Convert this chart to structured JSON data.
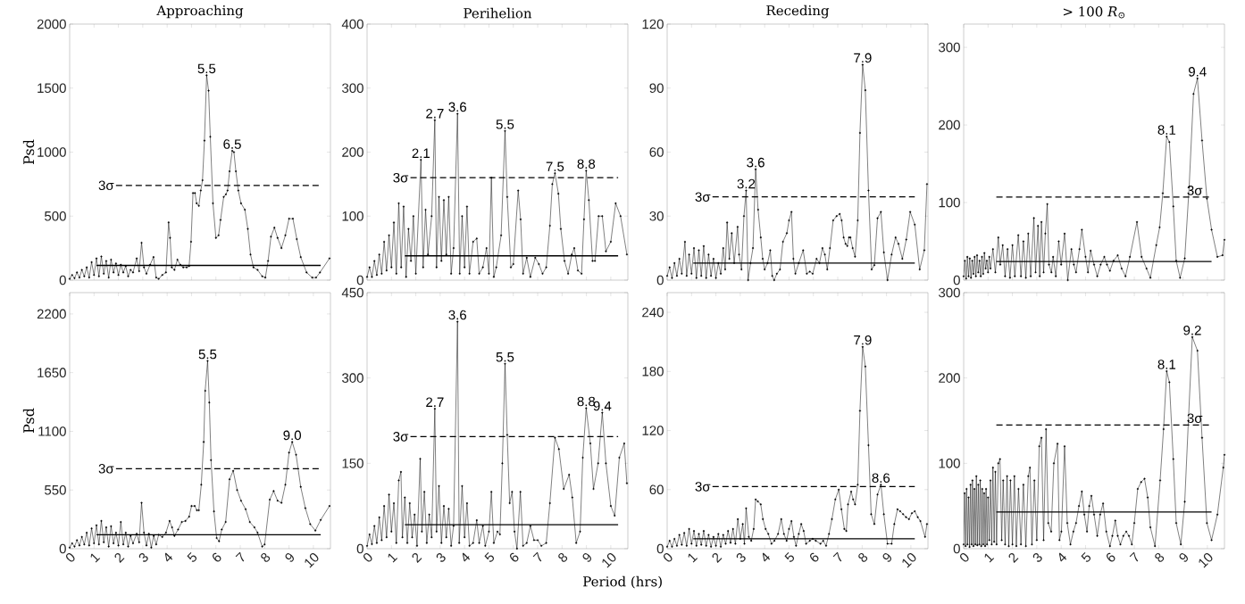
{
  "chart_data": [
    {
      "type": "line",
      "title": "Approaching",
      "ylabel": "Psd",
      "xlim": [
        0,
        10.7
      ],
      "xticks": [
        0,
        1,
        2,
        3,
        4,
        5,
        6,
        7,
        8,
        9,
        10
      ],
      "ylim": [
        0,
        2000
      ],
      "yticks": [
        0,
        500,
        1000,
        1500,
        2000
      ],
      "tick_labels": "y",
      "annotations": [
        {
          "text": "5.5",
          "x": 5.62,
          "y": 1600
        },
        {
          "text": "6.5",
          "x": 6.67,
          "y": 1010
        },
        {
          "text": "3σ",
          "x": 1.9,
          "y": 740
        }
      ],
      "series": [
        {
          "color": "#000000",
          "marker": "circle",
          "x": [
            0,
            0.1,
            0.2,
            0.3,
            0.4,
            0.5,
            0.6,
            0.7,
            0.8,
            0.9,
            1.0,
            1.1,
            1.2,
            1.3,
            1.4,
            1.5,
            1.6,
            1.7,
            1.8,
            1.9,
            2.0,
            2.1,
            2.2,
            2.3,
            2.4,
            2.5,
            2.6,
            2.75,
            2.85,
            2.95,
            3.05,
            3.15,
            3.3,
            3.44,
            3.55,
            3.65,
            3.8,
            3.95,
            4.06,
            4.12,
            4.19,
            4.3,
            4.42,
            4.54,
            4.66,
            4.8,
            4.9,
            4.98,
            5.06,
            5.14,
            5.21,
            5.3,
            5.38,
            5.45,
            5.53,
            5.62,
            5.7,
            5.77,
            5.88,
            6.0,
            6.11,
            6.19,
            6.32,
            6.41,
            6.48,
            6.56,
            6.67,
            6.74,
            6.82,
            6.92,
            7.03,
            7.19,
            7.31,
            7.42,
            7.54,
            7.71,
            7.9,
            8.03,
            8.14,
            8.26,
            8.4,
            8.53,
            8.69,
            8.85,
            9.0,
            9.16,
            9.32,
            9.48,
            9.72,
            9.95,
            10.11,
            10.27,
            10.66
          ],
          "values": [
            10,
            40,
            15,
            60,
            20,
            80,
            30,
            100,
            20,
            140,
            40,
            170,
            30,
            185,
            50,
            150,
            20,
            160,
            60,
            130,
            40,
            120,
            60,
            110,
            30,
            80,
            60,
            170,
            70,
            292,
            100,
            50,
            120,
            180,
            20,
            10,
            40,
            60,
            451,
            330,
            100,
            80,
            160,
            120,
            100,
            100,
            110,
            300,
            680,
            680,
            600,
            580,
            700,
            780,
            1090,
            1600,
            1480,
            1120,
            600,
            330,
            350,
            470,
            650,
            670,
            700,
            850,
            1010,
            1000,
            850,
            700,
            600,
            550,
            400,
            200,
            100,
            80,
            30,
            20,
            150,
            340,
            410,
            330,
            250,
            350,
            480,
            480,
            320,
            180,
            60,
            20,
            20,
            60,
            170
          ]
        },
        {
          "color": "#000000",
          "marker": "none",
          "line_style": "dashed",
          "x": [
            1.9,
            10.3
          ],
          "values": [
            740,
            740
          ]
        },
        {
          "color": "#000000",
          "marker": "none",
          "line_style": "solid",
          "x": [
            1.1,
            10.3
          ],
          "values": [
            115,
            115
          ]
        }
      ]
    },
    {
      "type": "line",
      "title": "Perihelion",
      "xlim": [
        0,
        10.7
      ],
      "xticks": [
        0,
        1,
        2,
        3,
        4,
        5,
        6,
        7,
        8,
        9,
        10
      ],
      "ylim": [
        0,
        400
      ],
      "yticks": [
        0,
        100,
        200,
        300,
        400
      ],
      "tick_labels": "y",
      "annotations": [
        {
          "text": "2.1",
          "x": 2.21,
          "y": 188
        },
        {
          "text": "2.7",
          "x": 2.78,
          "y": 250
        },
        {
          "text": "3.6",
          "x": 3.71,
          "y": 260
        },
        {
          "text": "5.5",
          "x": 5.66,
          "y": 233
        },
        {
          "text": "7.5",
          "x": 7.71,
          "y": 167
        },
        {
          "text": "8.8",
          "x": 8.99,
          "y": 171
        },
        {
          "text": "3σ",
          "x": 1.78,
          "y": 160
        }
      ],
      "series": [
        {
          "color": "#000000",
          "marker": "circle",
          "x": [
            0,
            0.1,
            0.2,
            0.3,
            0.4,
            0.5,
            0.6,
            0.7,
            0.8,
            0.9,
            1.0,
            1.1,
            1.2,
            1.3,
            1.4,
            1.5,
            1.6,
            1.7,
            1.8,
            1.9,
            2.0,
            2.21,
            2.3,
            2.4,
            2.5,
            2.65,
            2.78,
            2.85,
            2.95,
            3.05,
            3.15,
            3.25,
            3.35,
            3.45,
            3.55,
            3.71,
            3.8,
            3.9,
            4.0,
            4.1,
            4.2,
            4.35,
            4.5,
            4.6,
            4.75,
            4.9,
            5.0,
            5.1,
            5.2,
            5.3,
            5.5,
            5.66,
            5.75,
            5.9,
            6.0,
            6.2,
            6.3,
            6.4,
            6.55,
            6.7,
            6.9,
            7.05,
            7.2,
            7.35,
            7.5,
            7.6,
            7.71,
            7.85,
            7.95,
            8.1,
            8.25,
            8.4,
            8.5,
            8.65,
            8.8,
            8.9,
            8.99,
            9.1,
            9.25,
            9.35,
            9.5,
            9.65,
            9.8,
            10.0,
            10.2,
            10.4,
            10.66
          ],
          "values": [
            5,
            20,
            5,
            30,
            8,
            40,
            10,
            60,
            15,
            70,
            20,
            90,
            10,
            120,
            20,
            115,
            5,
            80,
            30,
            100,
            10,
            188,
            20,
            110,
            40,
            100,
            250,
            20,
            130,
            30,
            125,
            40,
            130,
            10,
            50,
            260,
            10,
            100,
            20,
            115,
            10,
            60,
            65,
            10,
            20,
            50,
            10,
            160,
            5,
            20,
            70,
            233,
            130,
            20,
            25,
            140,
            95,
            10,
            35,
            5,
            35,
            25,
            10,
            20,
            85,
            150,
            167,
            135,
            80,
            30,
            10,
            40,
            50,
            15,
            10,
            95,
            171,
            125,
            30,
            30,
            100,
            100,
            45,
            60,
            120,
            100,
            40
          ]
        },
        {
          "color": "#000000",
          "marker": "none",
          "line_style": "dashed",
          "x": [
            1.78,
            10.3
          ],
          "values": [
            160,
            160
          ]
        },
        {
          "color": "#000000",
          "marker": "none",
          "line_style": "solid",
          "x": [
            1.55,
            10.3
          ],
          "values": [
            38,
            38
          ]
        }
      ]
    },
    {
      "type": "line",
      "title": "Receding",
      "xlim": [
        0,
        10.7
      ],
      "xticks": [
        0,
        1,
        2,
        3,
        4,
        5,
        6,
        7,
        8,
        9,
        10
      ],
      "ylim": [
        0,
        120
      ],
      "yticks": [
        0,
        30,
        60,
        90,
        120
      ],
      "tick_labels": "y",
      "annotations": [
        {
          "text": "3.2",
          "x": 3.24,
          "y": 42
        },
        {
          "text": "3.6",
          "x": 3.63,
          "y": 52
        },
        {
          "text": "7.9",
          "x": 8.02,
          "y": 101
        },
        {
          "text": "3σ",
          "x": 1.86,
          "y": 39
        }
      ],
      "series": [
        {
          "color": "#000000",
          "marker": "circle",
          "x": [
            0,
            0.1,
            0.2,
            0.3,
            0.4,
            0.5,
            0.6,
            0.73,
            0.8,
            0.9,
            1.0,
            1.1,
            1.2,
            1.3,
            1.4,
            1.5,
            1.6,
            1.7,
            1.8,
            1.9,
            2.0,
            2.1,
            2.2,
            2.3,
            2.38,
            2.46,
            2.55,
            2.65,
            2.75,
            2.89,
            2.95,
            3.05,
            3.15,
            3.24,
            3.32,
            3.42,
            3.52,
            3.63,
            3.73,
            3.84,
            3.92,
            4.0,
            4.12,
            4.23,
            4.31,
            4.39,
            4.5,
            4.63,
            4.75,
            4.91,
            5.0,
            5.1,
            5.18,
            5.26,
            5.4,
            5.58,
            5.73,
            5.85,
            5.97,
            6.13,
            6.25,
            6.37,
            6.47,
            6.57,
            6.68,
            6.81,
            6.95,
            7.08,
            7.16,
            7.24,
            7.32,
            7.39,
            7.46,
            7.52,
            7.61,
            7.71,
            7.82,
            7.91,
            8.02,
            8.13,
            8.26,
            8.39,
            8.5,
            8.63,
            8.77,
            8.89,
            9.04,
            9.21,
            9.37,
            9.49,
            9.65,
            9.81,
            9.97,
            10.16,
            10.36,
            10.55,
            10.66
          ],
          "values": [
            2,
            6,
            1,
            8,
            2,
            10,
            3,
            18,
            2,
            12,
            3,
            15,
            1,
            14,
            2,
            16,
            1,
            12,
            2,
            10,
            1,
            8,
            3,
            15,
            5,
            27,
            10,
            22,
            8,
            25,
            12,
            5,
            30,
            42,
            0,
            8,
            15,
            52,
            33,
            20,
            10,
            5,
            8,
            14,
            2,
            0,
            3,
            5,
            18,
            22,
            28,
            32,
            10,
            3,
            8,
            14,
            3,
            4,
            3,
            10,
            8,
            15,
            12,
            5,
            15,
            28,
            30,
            31,
            28,
            20,
            17,
            16,
            20,
            20,
            15,
            11,
            28,
            69,
            101,
            89,
            42,
            5,
            7,
            29,
            32,
            13,
            0,
            12,
            20,
            17,
            10,
            19,
            32,
            26,
            5,
            14,
            45
          ]
        },
        {
          "color": "#000000",
          "marker": "none",
          "line_style": "dashed",
          "x": [
            1.86,
            10.16
          ],
          "values": [
            39,
            39
          ]
        },
        {
          "color": "#000000",
          "marker": "none",
          "line_style": "solid",
          "x": [
            1.07,
            10.16
          ],
          "values": [
            8,
            8
          ]
        }
      ]
    },
    {
      "type": "line",
      "title": "> 100 *R*$_{⊙}$",
      "xlim": [
        0,
        10.7
      ],
      "xticks": [
        0,
        1,
        2,
        3,
        4,
        5,
        6,
        7,
        8,
        9,
        10
      ],
      "ylim": [
        0,
        330
      ],
      "yticks": [
        0,
        100,
        200,
        300
      ],
      "tick_labels": "y",
      "annotations": [
        {
          "text": "8.1",
          "x": 8.33,
          "y": 185
        },
        {
          "text": "9.4",
          "x": 9.59,
          "y": 260
        },
        {
          "text": "3σ",
          "x": 9.48,
          "y": 107
        }
      ],
      "series": [
        {
          "color": "#000000",
          "marker": "circle",
          "x": [
            0,
            0.05,
            0.1,
            0.15,
            0.2,
            0.25,
            0.3,
            0.35,
            0.4,
            0.45,
            0.5,
            0.55,
            0.6,
            0.65,
            0.7,
            0.75,
            0.8,
            0.85,
            0.9,
            0.95,
            1.0,
            1.05,
            1.1,
            1.2,
            1.3,
            1.42,
            1.5,
            1.6,
            1.7,
            1.8,
            1.9,
            2.0,
            2.1,
            2.24,
            2.35,
            2.45,
            2.55,
            2.65,
            2.75,
            2.88,
            2.95,
            3.05,
            3.12,
            3.19,
            3.28,
            3.35,
            3.43,
            3.5,
            3.6,
            3.67,
            3.78,
            3.9,
            4.0,
            4.14,
            4.27,
            4.42,
            4.52,
            4.61,
            4.75,
            4.85,
            5.0,
            5.1,
            5.21,
            5.35,
            5.48,
            5.62,
            5.77,
            5.88,
            6.0,
            6.15,
            6.32,
            6.48,
            6.64,
            6.82,
            7.11,
            7.3,
            7.5,
            7.66,
            7.9,
            8.04,
            8.17,
            8.33,
            8.44,
            8.6,
            8.72,
            8.88,
            9.07,
            9.25,
            9.43,
            9.59,
            9.78,
            9.98,
            10.17,
            10.41,
            10.62,
            10.7
          ],
          "values": [
            5,
            25,
            2,
            30,
            5,
            28,
            3,
            25,
            8,
            30,
            5,
            32,
            10,
            25,
            5,
            30,
            8,
            35,
            15,
            25,
            10,
            30,
            15,
            40,
            10,
            55,
            20,
            45,
            5,
            40,
            3,
            45,
            5,
            58,
            5,
            50,
            3,
            60,
            5,
            80,
            10,
            70,
            5,
            75,
            10,
            60,
            98,
            20,
            10,
            30,
            5,
            50,
            20,
            60,
            0,
            40,
            20,
            10,
            40,
            65,
            30,
            10,
            38,
            20,
            5,
            20,
            30,
            20,
            12,
            25,
            32,
            15,
            5,
            30,
            75,
            30,
            15,
            3,
            45,
            68,
            112,
            185,
            178,
            95,
            25,
            3,
            28,
            120,
            240,
            260,
            180,
            105,
            65,
            30,
            32,
            52
          ]
        },
        {
          "color": "#000000",
          "marker": "none",
          "line_style": "dashed",
          "x": [
            1.34,
            10.17
          ],
          "values": [
            107,
            107
          ]
        },
        {
          "color": "#000000",
          "marker": "none",
          "line_style": "solid",
          "x": [
            1.34,
            10.17
          ],
          "values": [
            24,
            24
          ]
        }
      ]
    },
    {
      "type": "line",
      "ylabel": "Psd",
      "xlim": [
        0,
        10.7
      ],
      "xticks": [
        0,
        1,
        2,
        3,
        4,
        5,
        6,
        7,
        8,
        9,
        10
      ],
      "ylim": [
        0,
        2400
      ],
      "yticks": [
        0,
        550,
        1100,
        1650,
        2200
      ],
      "annotations": [
        {
          "text": "5.5",
          "x": 5.66,
          "y": 1760
        },
        {
          "text": "9.0",
          "x": 9.13,
          "y": 1000
        },
        {
          "text": "3σ",
          "x": 1.9,
          "y": 750
        }
      ],
      "series": [
        {
          "color": "#000000",
          "marker": "circle",
          "x": [
            0,
            0.1,
            0.2,
            0.3,
            0.4,
            0.5,
            0.6,
            0.7,
            0.8,
            0.9,
            1.0,
            1.1,
            1.2,
            1.3,
            1.4,
            1.5,
            1.6,
            1.7,
            1.8,
            1.9,
            2.0,
            2.1,
            2.2,
            2.3,
            2.4,
            2.5,
            2.6,
            2.75,
            2.85,
            2.95,
            3.05,
            3.15,
            3.25,
            3.35,
            3.45,
            3.55,
            3.65,
            3.8,
            3.95,
            4.1,
            4.2,
            4.3,
            4.45,
            4.6,
            4.75,
            4.9,
            5.0,
            5.13,
            5.22,
            5.3,
            5.4,
            5.5,
            5.56,
            5.66,
            5.73,
            5.8,
            5.92,
            6.03,
            6.13,
            6.24,
            6.4,
            6.56,
            6.71,
            6.87,
            7.03,
            7.22,
            7.39,
            7.58,
            7.71,
            7.9,
            8.0,
            8.21,
            8.37,
            8.53,
            8.69,
            8.85,
            9.0,
            9.13,
            9.29,
            9.48,
            9.67,
            9.87,
            10.08,
            10.3,
            10.66
          ],
          "values": [
            10,
            50,
            20,
            80,
            30,
            110,
            40,
            150,
            30,
            190,
            50,
            220,
            40,
            260,
            60,
            200,
            20,
            210,
            50,
            150,
            30,
            250,
            40,
            150,
            20,
            120,
            50,
            140,
            60,
            430,
            150,
            30,
            140,
            10,
            120,
            40,
            130,
            110,
            150,
            260,
            200,
            120,
            180,
            250,
            260,
            300,
            400,
            400,
            360,
            360,
            600,
            1000,
            1480,
            1760,
            1370,
            830,
            350,
            100,
            70,
            180,
            250,
            650,
            730,
            550,
            450,
            370,
            250,
            200,
            150,
            20,
            40,
            460,
            540,
            450,
            430,
            600,
            900,
            1000,
            880,
            580,
            380,
            230,
            170,
            270,
            400
          ]
        },
        {
          "color": "#000000",
          "marker": "none",
          "line_style": "dashed",
          "x": [
            1.9,
            10.3
          ],
          "values": [
            750,
            750
          ]
        },
        {
          "color": "#000000",
          "marker": "none",
          "line_style": "solid",
          "x": [
            1.1,
            10.3
          ],
          "values": [
            130,
            130
          ]
        }
      ]
    },
    {
      "type": "line",
      "xlabel": "Period (hrs)",
      "xlim": [
        0,
        10.7
      ],
      "xticks": [
        0,
        1,
        2,
        3,
        4,
        5,
        6,
        7,
        8,
        9,
        10
      ],
      "ylim": [
        0,
        450
      ],
      "yticks": [
        0,
        150,
        300,
        450
      ],
      "annotations": [
        {
          "text": "2.7",
          "x": 2.78,
          "y": 246
        },
        {
          "text": "3.6",
          "x": 3.71,
          "y": 399
        },
        {
          "text": "5.5",
          "x": 5.66,
          "y": 325
        },
        {
          "text": "8.8",
          "x": 8.99,
          "y": 247
        },
        {
          "text": "9.4",
          "x": 9.65,
          "y": 239
        },
        {
          "text": "3σ",
          "x": 1.78,
          "y": 197
        }
      ],
      "series": [
        {
          "color": "#000000",
          "marker": "circle",
          "x": [
            0,
            0.1,
            0.2,
            0.3,
            0.4,
            0.5,
            0.6,
            0.7,
            0.8,
            0.9,
            1.0,
            1.1,
            1.2,
            1.3,
            1.39,
            1.45,
            1.55,
            1.65,
            1.75,
            1.85,
            1.95,
            2.05,
            2.18,
            2.25,
            2.35,
            2.45,
            2.55,
            2.65,
            2.78,
            2.85,
            2.95,
            3.05,
            3.15,
            3.25,
            3.35,
            3.45,
            3.55,
            3.71,
            3.78,
            3.9,
            4.0,
            4.1,
            4.2,
            4.35,
            4.5,
            4.6,
            4.75,
            4.85,
            5.0,
            5.1,
            5.2,
            5.35,
            5.45,
            5.55,
            5.66,
            5.75,
            5.85,
            5.95,
            6.05,
            6.15,
            6.29,
            6.4,
            6.55,
            6.7,
            6.85,
            7.0,
            7.15,
            7.35,
            7.5,
            7.71,
            7.87,
            8.07,
            8.29,
            8.42,
            8.58,
            8.74,
            8.85,
            8.99,
            9.16,
            9.29,
            9.48,
            9.65,
            9.8,
            10.0,
            10.16,
            10.35,
            10.55,
            10.66
          ],
          "values": [
            5,
            25,
            8,
            40,
            10,
            55,
            15,
            75,
            20,
            95,
            30,
            80,
            10,
            120,
            135,
            20,
            90,
            10,
            80,
            20,
            60,
            5,
            158,
            30,
            100,
            10,
            60,
            20,
            246,
            30,
            110,
            10,
            75,
            20,
            70,
            5,
            40,
            399,
            10,
            110,
            20,
            80,
            5,
            10,
            50,
            10,
            40,
            5,
            30,
            100,
            10,
            30,
            25,
            150,
            325,
            200,
            80,
            100,
            30,
            0,
            100,
            5,
            10,
            40,
            15,
            15,
            5,
            10,
            80,
            195,
            175,
            105,
            130,
            90,
            10,
            30,
            160,
            247,
            185,
            105,
            150,
            239,
            150,
            75,
            58,
            160,
            185,
            115
          ]
        },
        {
          "color": "#000000",
          "marker": "none",
          "line_style": "dashed",
          "x": [
            1.78,
            10.3
          ],
          "values": [
            197,
            197
          ]
        },
        {
          "color": "#000000",
          "marker": "none",
          "line_style": "solid",
          "x": [
            1.55,
            10.3
          ],
          "values": [
            42,
            42
          ]
        }
      ]
    },
    {
      "type": "line",
      "xlim": [
        0,
        10.7
      ],
      "xticks": [
        0,
        1,
        2,
        3,
        4,
        5,
        6,
        7,
        8,
        9,
        10
      ],
      "ylim": [
        0,
        260
      ],
      "yticks": [
        0,
        60,
        120,
        180,
        240
      ],
      "annotations": [
        {
          "text": "7.9",
          "x": 8.02,
          "y": 205
        },
        {
          "text": "8.6",
          "x": 8.77,
          "y": 65
        },
        {
          "text": "3σ",
          "x": 1.86,
          "y": 63
        }
      ],
      "series": [
        {
          "color": "#000000",
          "marker": "circle",
          "x": [
            0,
            0.1,
            0.2,
            0.3,
            0.4,
            0.5,
            0.6,
            0.7,
            0.8,
            0.9,
            1.0,
            1.1,
            1.2,
            1.3,
            1.4,
            1.5,
            1.6,
            1.7,
            1.8,
            1.9,
            2.0,
            2.1,
            2.2,
            2.3,
            2.4,
            2.5,
            2.6,
            2.7,
            2.8,
            2.9,
            3.0,
            3.1,
            3.17,
            3.24,
            3.35,
            3.45,
            3.55,
            3.63,
            3.72,
            3.84,
            3.93,
            4.04,
            4.15,
            4.28,
            4.4,
            4.55,
            4.68,
            4.79,
            4.9,
            5.0,
            5.1,
            5.2,
            5.29,
            5.4,
            5.5,
            5.6,
            5.7,
            5.85,
            5.97,
            6.1,
            6.29,
            6.4,
            6.52,
            6.64,
            6.76,
            6.9,
            7.04,
            7.15,
            7.27,
            7.35,
            7.42,
            7.55,
            7.63,
            7.71,
            7.82,
            7.91,
            8.02,
            8.13,
            8.26,
            8.37,
            8.5,
            8.63,
            8.77,
            8.89,
            9.04,
            9.21,
            9.32,
            9.45,
            9.56,
            9.68,
            9.8,
            9.92,
            10.04,
            10.16,
            10.28,
            10.39,
            10.58,
            10.66
          ],
          "values": [
            2,
            8,
            2,
            10,
            3,
            14,
            4,
            16,
            3,
            20,
            5,
            18,
            3,
            15,
            4,
            18,
            3,
            14,
            2,
            12,
            3,
            15,
            2,
            14,
            5,
            18,
            6,
            20,
            5,
            30,
            10,
            25,
            5,
            41,
            12,
            8,
            20,
            50,
            48,
            45,
            30,
            20,
            15,
            5,
            8,
            15,
            30,
            15,
            8,
            20,
            28,
            12,
            3,
            15,
            25,
            18,
            5,
            8,
            10,
            8,
            5,
            8,
            3,
            15,
            30,
            50,
            60,
            40,
            20,
            18,
            45,
            58,
            50,
            45,
            65,
            140,
            205,
            185,
            105,
            35,
            25,
            55,
            65,
            35,
            5,
            5,
            25,
            40,
            38,
            35,
            32,
            30,
            36,
            38,
            32,
            28,
            12,
            25
          ]
        },
        {
          "color": "#000000",
          "marker": "none",
          "line_style": "dashed",
          "x": [
            1.86,
            10.16
          ],
          "values": [
            63,
            63
          ]
        },
        {
          "color": "#000000",
          "marker": "none",
          "line_style": "solid",
          "x": [
            1.07,
            10.16
          ],
          "values": [
            10,
            10
          ]
        }
      ]
    },
    {
      "type": "line",
      "xlim": [
        0,
        10.7
      ],
      "xticks": [
        0,
        1,
        2,
        3,
        4,
        5,
        6,
        7,
        8,
        9,
        10
      ],
      "ylim": [
        0,
        300
      ],
      "yticks": [
        0,
        100,
        200,
        300
      ],
      "annotations": [
        {
          "text": "8.1",
          "x": 8.33,
          "y": 208
        },
        {
          "text": "9.2",
          "x": 9.38,
          "y": 248
        },
        {
          "text": "3σ",
          "x": 9.48,
          "y": 145
        }
      ],
      "series": [
        {
          "color": "#000000",
          "marker": "circle",
          "x": [
            0,
            0.04,
            0.08,
            0.12,
            0.16,
            0.2,
            0.24,
            0.28,
            0.32,
            0.36,
            0.4,
            0.44,
            0.48,
            0.52,
            0.56,
            0.6,
            0.64,
            0.68,
            0.72,
            0.76,
            0.8,
            0.84,
            0.88,
            0.92,
            0.96,
            1.0,
            1.05,
            1.1,
            1.15,
            1.2,
            1.25,
            1.3,
            1.35,
            1.42,
            1.49,
            1.56,
            1.62,
            1.7,
            1.78,
            1.85,
            1.92,
            2.0,
            2.08,
            2.16,
            2.25,
            2.35,
            2.45,
            2.55,
            2.65,
            2.72,
            2.8,
            2.9,
            3.0,
            3.1,
            3.19,
            3.28,
            3.38,
            3.47,
            3.59,
            3.7,
            3.85,
            3.93,
            4.01,
            4.14,
            4.25,
            4.38,
            4.5,
            4.61,
            4.73,
            4.85,
            4.95,
            5.06,
            5.15,
            5.24,
            5.35,
            5.48,
            5.6,
            5.72,
            5.85,
            6.0,
            6.1,
            6.22,
            6.32,
            6.43,
            6.55,
            6.67,
            6.78,
            6.9,
            7.0,
            7.14,
            7.28,
            7.42,
            7.55,
            7.66,
            7.85,
            8.06,
            8.2,
            8.33,
            8.44,
            8.6,
            8.72,
            8.91,
            9.07,
            9.22,
            9.38,
            9.59,
            9.78,
            9.98,
            10.17,
            10.41,
            10.65,
            10.7
          ],
          "values": [
            5,
            65,
            3,
            70,
            5,
            60,
            2,
            75,
            5,
            80,
            3,
            70,
            5,
            85,
            4,
            75,
            5,
            80,
            3,
            70,
            5,
            65,
            3,
            70,
            5,
            60,
            10,
            80,
            5,
            95,
            8,
            90,
            5,
            100,
            105,
            10,
            80,
            5,
            85,
            3,
            80,
            5,
            85,
            3,
            70,
            5,
            75,
            3,
            85,
            95,
            5,
            80,
            10,
            120,
            130,
            10,
            140,
            30,
            20,
            100,
            123,
            10,
            20,
            120,
            30,
            5,
            20,
            30,
            50,
            67,
            40,
            20,
            50,
            62,
            40,
            15,
            40,
            53,
            20,
            3,
            15,
            33,
            15,
            5,
            15,
            20,
            15,
            5,
            30,
            70,
            78,
            82,
            60,
            25,
            3,
            80,
            140,
            208,
            195,
            105,
            30,
            5,
            55,
            150,
            248,
            232,
            130,
            30,
            10,
            40,
            95,
            110
          ]
        },
        {
          "color": "#000000",
          "marker": "none",
          "line_style": "dashed",
          "x": [
            1.34,
            10.17
          ],
          "values": [
            145,
            145
          ]
        },
        {
          "color": "#000000",
          "marker": "none",
          "line_style": "solid",
          "x": [
            1.34,
            10.17
          ],
          "values": [
            43,
            43
          ]
        }
      ]
    }
  ]
}
